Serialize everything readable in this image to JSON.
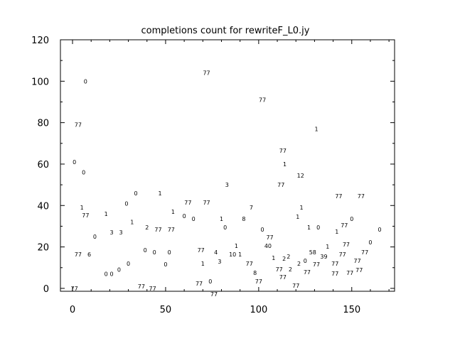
{
  "chart_data": {
    "type": "scatter",
    "title": "completions count for rewriteF_L0.jy",
    "xlabel": "",
    "ylabel": "",
    "xlim": [
      -6.5,
      173
    ],
    "ylim": [
      -1.4,
      120
    ],
    "xticks": [
      0,
      50,
      100,
      150
    ],
    "yticks": [
      0,
      20,
      40,
      60,
      80,
      100,
      120
    ],
    "grid": false,
    "marker": "text label",
    "points": [
      {
        "x": 1,
        "y": 0,
        "label": "77"
      },
      {
        "x": 1,
        "y": 61,
        "label": "0"
      },
      {
        "x": 3,
        "y": 79,
        "label": "77"
      },
      {
        "x": 6,
        "y": 56,
        "label": "0"
      },
      {
        "x": 7,
        "y": 100,
        "label": "0"
      },
      {
        "x": 5,
        "y": 39,
        "label": "1"
      },
      {
        "x": 7,
        "y": 38,
        "label": "77"
      },
      {
        "x": 3,
        "y": 16.5,
        "label": "77"
      },
      {
        "x": 9,
        "y": 16.5,
        "label": "6"
      },
      {
        "x": 12,
        "y": 25,
        "label": "0"
      },
      {
        "x": 18,
        "y": 36,
        "label": "1"
      },
      {
        "x": 18,
        "y": 7,
        "label": "0"
      },
      {
        "x": 21,
        "y": 7,
        "label": "0"
      },
      {
        "x": 21,
        "y": 27,
        "label": "3"
      },
      {
        "x": 26,
        "y": 27,
        "label": "3"
      },
      {
        "x": 25,
        "y": 9,
        "label": "0"
      },
      {
        "x": 29,
        "y": 41,
        "label": "0"
      },
      {
        "x": 30,
        "y": 12,
        "label": "0"
      },
      {
        "x": 32,
        "y": 32,
        "label": "1"
      },
      {
        "x": 34,
        "y": 46,
        "label": "0"
      },
      {
        "x": 37,
        "y": 1,
        "label": "77"
      },
      {
        "x": 43,
        "y": 0,
        "label": "77"
      },
      {
        "x": 39,
        "y": 18.5,
        "label": "0"
      },
      {
        "x": 44,
        "y": 17.5,
        "label": "0"
      },
      {
        "x": 40,
        "y": 29.5,
        "label": "2"
      },
      {
        "x": 46,
        "y": 28.5,
        "label": "77"
      },
      {
        "x": 53,
        "y": 28.5,
        "label": "77"
      },
      {
        "x": 52,
        "y": 17.5,
        "label": "0"
      },
      {
        "x": 50,
        "y": 11.7,
        "label": "0"
      },
      {
        "x": 47,
        "y": 46,
        "label": "1"
      },
      {
        "x": 54,
        "y": 37,
        "label": "1"
      },
      {
        "x": 60,
        "y": 35,
        "label": "0"
      },
      {
        "x": 65,
        "y": 33.6,
        "label": "0"
      },
      {
        "x": 62,
        "y": 41.5,
        "label": "77"
      },
      {
        "x": 72,
        "y": 41.5,
        "label": "77"
      },
      {
        "x": 83,
        "y": 50,
        "label": "3"
      },
      {
        "x": 72,
        "y": 104,
        "label": "77"
      },
      {
        "x": 69,
        "y": 18.5,
        "label": "77"
      },
      {
        "x": 70,
        "y": 12,
        "label": "1"
      },
      {
        "x": 77,
        "y": 17.5,
        "label": "4"
      },
      {
        "x": 79,
        "y": 13,
        "label": "3"
      },
      {
        "x": 86,
        "y": 16.5,
        "label": "10"
      },
      {
        "x": 90,
        "y": 16.5,
        "label": "1"
      },
      {
        "x": 88,
        "y": 20.5,
        "label": "1"
      },
      {
        "x": 80,
        "y": 33.6,
        "label": "1"
      },
      {
        "x": 82,
        "y": 29.5,
        "label": "0"
      },
      {
        "x": 92,
        "y": 33.6,
        "label": "8"
      },
      {
        "x": 96,
        "y": 39,
        "label": "7"
      },
      {
        "x": 95,
        "y": 12,
        "label": "77"
      },
      {
        "x": 98,
        "y": 7.5,
        "label": "8"
      },
      {
        "x": 100,
        "y": 3.4,
        "label": "77"
      },
      {
        "x": 68,
        "y": 2.4,
        "label": "77"
      },
      {
        "x": 74,
        "y": 3.4,
        "label": "0"
      },
      {
        "x": 76,
        "y": 0,
        "label": "77"
      },
      {
        "x": 102,
        "y": 91,
        "label": "77"
      },
      {
        "x": 102,
        "y": 28.5,
        "label": "0"
      },
      {
        "x": 106,
        "y": 24.7,
        "label": "77"
      },
      {
        "x": 105,
        "y": 20.5,
        "label": "40"
      },
      {
        "x": 108,
        "y": 17.5,
        "label": "1"
      },
      {
        "x": 110,
        "y": 14.4,
        "label": "2"
      },
      {
        "x": 111,
        "y": 12,
        "label": "77"
      },
      {
        "x": 112,
        "y": 50,
        "label": "77"
      },
      {
        "x": 113,
        "y": 66.5,
        "label": "77"
      },
      {
        "x": 114,
        "y": 60,
        "label": "1"
      },
      {
        "x": 113,
        "y": 5.5,
        "label": "77"
      },
      {
        "x": 116,
        "y": 15.4,
        "label": "2"
      },
      {
        "x": 117,
        "y": 12,
        "label": "2"
      },
      {
        "x": 118,
        "y": 12,
        "label": "2"
      },
      {
        "x": 120,
        "y": 1.4,
        "label": "77"
      },
      {
        "x": 122.5,
        "y": 54.5,
        "label": "12"
      },
      {
        "x": 123,
        "y": 39,
        "label": "1"
      },
      {
        "x": 121,
        "y": 34.6,
        "label": "1"
      },
      {
        "x": 127,
        "y": 29.5,
        "label": "1"
      },
      {
        "x": 132,
        "y": 29.5,
        "label": "0"
      },
      {
        "x": 131,
        "y": 77,
        "label": "1"
      },
      {
        "x": 125,
        "y": 13.4,
        "label": "0"
      },
      {
        "x": 126,
        "y": 10.6,
        "label": "77"
      },
      {
        "x": 129,
        "y": 17.5,
        "label": "58"
      },
      {
        "x": 131,
        "y": 14.4,
        "label": "77"
      },
      {
        "x": 135,
        "y": 15.4,
        "label": "39"
      },
      {
        "x": 137,
        "y": 17.5,
        "label": "1"
      },
      {
        "x": 141,
        "y": 12,
        "label": "77"
      },
      {
        "x": 141,
        "y": 10,
        "label": "77"
      },
      {
        "x": 143,
        "y": 44.6,
        "label": "77"
      },
      {
        "x": 155,
        "y": 44.6,
        "label": "77"
      },
      {
        "x": 150,
        "y": 33.6,
        "label": "0"
      },
      {
        "x": 146,
        "y": 30.5,
        "label": "77"
      },
      {
        "x": 142,
        "y": 27.4,
        "label": "1"
      },
      {
        "x": 145,
        "y": 16.5,
        "label": "77"
      },
      {
        "x": 147,
        "y": 18.5,
        "label": "77"
      },
      {
        "x": 149,
        "y": 7.5,
        "label": "77"
      },
      {
        "x": 153,
        "y": 13.4,
        "label": "77"
      },
      {
        "x": 154,
        "y": 11.7,
        "label": "77"
      },
      {
        "x": 157,
        "y": 17.5,
        "label": "77"
      },
      {
        "x": 160,
        "y": 19.5,
        "label": "0"
      },
      {
        "x": 165,
        "y": 28.5,
        "label": "0"
      }
    ]
  }
}
